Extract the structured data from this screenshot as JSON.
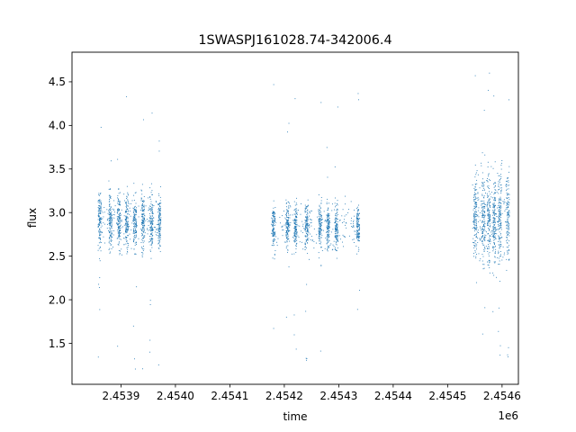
{
  "chart_data": {
    "type": "scatter",
    "title": "1SWASPJ161028.74-342006.4",
    "xlabel": "time",
    "ylabel": "flux",
    "x_offset_label": "1e6",
    "x_tick_values": [
      2.4539,
      2.454,
      2.4541,
      2.4542,
      2.4543,
      2.4544,
      2.4545,
      2.4546
    ],
    "x_tick_labels": [
      "2.4539",
      "2.4540",
      "2.4541",
      "2.4542",
      "2.4543",
      "2.4544",
      "2.4545",
      "2.4546"
    ],
    "y_tick_values": [
      1.5,
      2.0,
      2.5,
      3.0,
      3.5,
      4.0,
      4.5
    ],
    "y_tick_labels": [
      "1.5",
      "2.0",
      "2.5",
      "3.0",
      "3.5",
      "4.0",
      "4.5"
    ],
    "xlim": [
      2.45381,
      2.45463
    ],
    "ylim": [
      1.03,
      4.84
    ],
    "grid": false,
    "marker_color": "#1f77b4",
    "seasons": [
      {
        "time_range": [
          2.45386,
          2.453972
        ],
        "flux_core": [
          2.35,
          3.5
        ],
        "flux_outliers": [
          1.2,
          4.5
        ],
        "clusters": [
          2.45386,
          2.45388,
          2.453895,
          2.45391,
          2.453925,
          2.45394,
          2.453955,
          2.45397
        ],
        "median_flux": 2.9
      },
      {
        "time_range": [
          2.454175,
          2.454335
        ],
        "flux_core": [
          2.45,
          3.35
        ],
        "flux_outliers": [
          1.18,
          4.6
        ],
        "clusters": [
          2.45418,
          2.454205,
          2.45422,
          2.45424,
          2.454265,
          2.45428,
          2.454295,
          2.454335
        ],
        "median_flux": 2.85
      },
      {
        "time_range": [
          2.454545,
          2.45461
        ],
        "flux_core": [
          2.2,
          4.0
        ],
        "flux_outliers": [
          1.22,
          4.63
        ],
        "clusters": [
          2.45455,
          2.454565,
          2.454575,
          2.454585,
          2.454595,
          2.45461
        ],
        "median_flux": 2.95
      }
    ]
  }
}
